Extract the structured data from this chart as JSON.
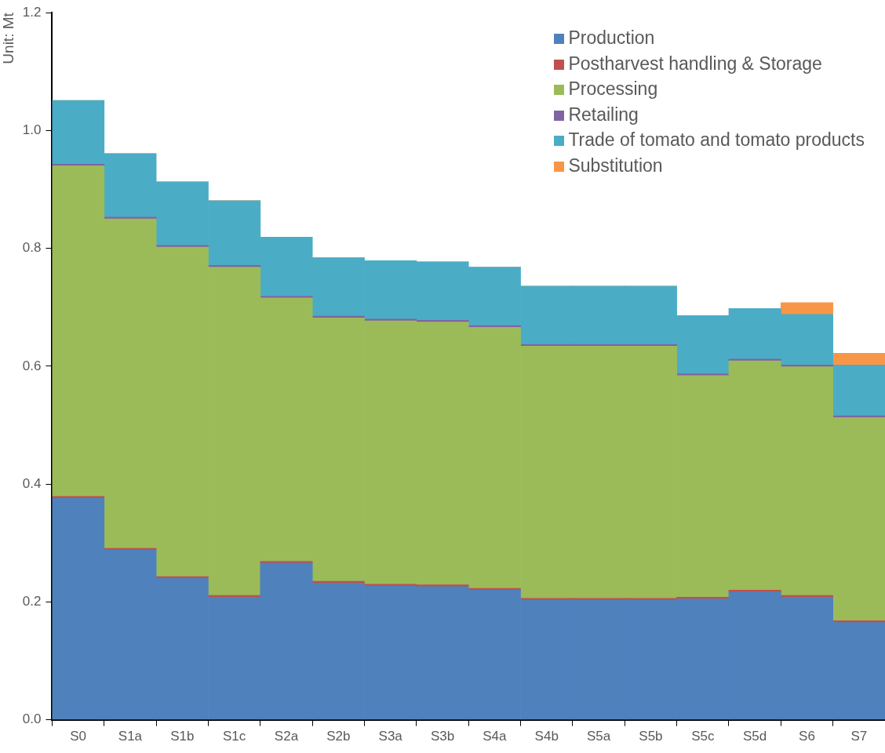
{
  "chart_data": {
    "type": "bar",
    "stacked": true,
    "ylabel": "Unit: Mt",
    "categories": [
      "S0",
      "S1a",
      "S1b",
      "S1c",
      "S2a",
      "S2b",
      "S3a",
      "S3b",
      "S4a",
      "S4b",
      "S5a",
      "S5b",
      "S5c",
      "S5d",
      "S6",
      "S7"
    ],
    "series": [
      {
        "name": "Production",
        "color": "#4f81bd",
        "values": [
          0.376,
          0.288,
          0.24,
          0.208,
          0.266,
          0.232,
          0.227,
          0.226,
          0.22,
          0.203,
          0.203,
          0.203,
          0.205,
          0.217,
          0.208,
          0.165
        ]
      },
      {
        "name": "Postharvest handling & Storage",
        "color": "#c0504d",
        "values": [
          0.003,
          0.003,
          0.003,
          0.003,
          0.003,
          0.003,
          0.003,
          0.003,
          0.003,
          0.003,
          0.003,
          0.003,
          0.003,
          0.003,
          0.003,
          0.003
        ]
      },
      {
        "name": "Processing",
        "color": "#9bbb59",
        "values": [
          0.561,
          0.559,
          0.559,
          0.557,
          0.447,
          0.447,
          0.447,
          0.446,
          0.443,
          0.428,
          0.428,
          0.428,
          0.376,
          0.389,
          0.388,
          0.345
        ]
      },
      {
        "name": "Retailing",
        "color": "#8064a2",
        "values": [
          0.003,
          0.003,
          0.003,
          0.003,
          0.003,
          0.003,
          0.003,
          0.003,
          0.003,
          0.003,
          0.003,
          0.003,
          0.003,
          0.003,
          0.003,
          0.003
        ]
      },
      {
        "name": "Trade of tomato and tomato products",
        "color": "#4bacc6",
        "values": [
          0.108,
          0.108,
          0.108,
          0.11,
          0.1,
          0.099,
          0.099,
          0.099,
          0.099,
          0.099,
          0.099,
          0.099,
          0.099,
          0.086,
          0.086,
          0.086
        ]
      },
      {
        "name": "Substitution",
        "color": "#f79646",
        "values": [
          0,
          0,
          0,
          0,
          0,
          0,
          0,
          0,
          0,
          0,
          0,
          0,
          0,
          0,
          0.02,
          0.02
        ]
      }
    ],
    "ylim": [
      0,
      1.2
    ],
    "yticks": [
      {
        "value": 0,
        "label": "0.0"
      },
      0.2,
      0.4,
      0.6,
      0.8,
      {
        "value": 1,
        "label": "1.0"
      },
      1.2
    ],
    "grid": false,
    "legend": "top right"
  }
}
